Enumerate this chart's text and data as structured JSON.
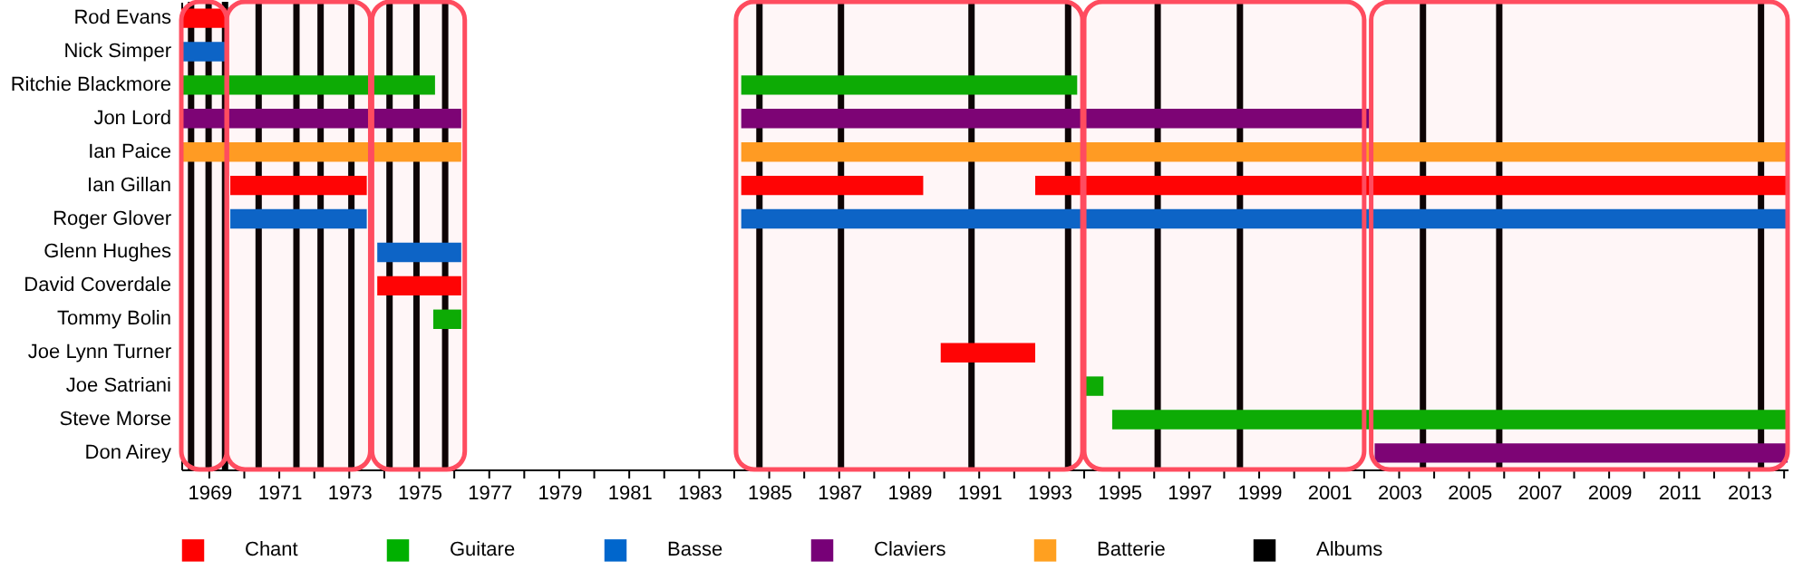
{
  "chart_data": {
    "type": "bar",
    "orientation": "horizontal",
    "legend": "bottom",
    "categories": [
      "Rod Evans",
      "Nick Simper",
      "Ritchie Blackmore",
      "Jon Lord",
      "Ian Paice",
      "Ian Gillan",
      "Roger Glover",
      "Glenn Hughes",
      "David Coverdale",
      "Tommy Bolin",
      "Joe Lynn Turner",
      "Joe Satriani",
      "Steve Morse",
      "Don Airey"
    ],
    "xlim": [
      1968.2,
      2014.1
    ],
    "xticks": [
      1969,
      {
        "value": 1970,
        "label": null
      },
      1971,
      {
        "value": 1972,
        "label": null
      },
      1973,
      {
        "value": 1974,
        "label": null
      },
      1975,
      {
        "value": 1976,
        "label": null
      },
      1977,
      {
        "value": 1978,
        "label": null
      },
      1979,
      {
        "value": 1980,
        "label": null
      },
      1981,
      {
        "value": 1982,
        "label": null
      },
      1983,
      {
        "value": 1984,
        "label": null
      },
      1985,
      {
        "value": 1986,
        "label": null
      },
      1987,
      {
        "value": 1988,
        "label": null
      },
      1989,
      {
        "value": 1990,
        "label": null
      },
      1991,
      {
        "value": 1992,
        "label": null
      },
      1993,
      {
        "value": 1994,
        "label": null
      },
      1995,
      {
        "value": 1996,
        "label": null
      },
      1997,
      {
        "value": 1998,
        "label": null
      },
      1999,
      {
        "value": 2000,
        "label": null
      },
      2001,
      {
        "value": 2002,
        "label": null
      },
      2003,
      {
        "value": 2004,
        "label": null
      },
      2005,
      {
        "value": 2006,
        "label": null
      },
      2007,
      {
        "value": 2008,
        "label": null
      },
      2009,
      {
        "value": 2010,
        "label": null
      },
      2011,
      {
        "value": 2012,
        "label": null
      },
      2013,
      {
        "value": 2014,
        "label": null
      }
    ],
    "series": [
      {
        "name": "Chant",
        "color": "#ff0000",
        "base": [
          1968.2,
          null,
          null,
          null,
          null,
          1969.6,
          null,
          null,
          1973.8,
          null,
          1989.9,
          null,
          null,
          null
        ],
        "values": [
          1.3,
          null,
          null,
          null,
          null,
          3.9,
          null,
          null,
          2.4,
          null,
          2.7,
          null,
          null,
          null
        ]
      },
      {
        "color": "#ff0000",
        "base": [
          null,
          null,
          null,
          null,
          null,
          1984.2,
          null,
          null,
          null,
          null,
          null,
          null,
          null,
          null
        ],
        "values": [
          null,
          null,
          null,
          null,
          null,
          5.2,
          null,
          null,
          null,
          null,
          null,
          null,
          null,
          null
        ]
      },
      {
        "color": "#ff0000",
        "base": [
          null,
          null,
          null,
          null,
          null,
          1992.6,
          null,
          null,
          null,
          null,
          null,
          null,
          null,
          null
        ],
        "values": [
          null,
          null,
          null,
          null,
          null,
          21.5,
          null,
          null,
          null,
          null,
          null,
          null,
          null,
          null
        ]
      },
      {
        "name": "Guitare",
        "color": "#00b000",
        "base": [
          null,
          null,
          1968.2,
          null,
          null,
          null,
          null,
          null,
          null,
          1975.4,
          null,
          1994.0,
          1994.8,
          null
        ],
        "values": [
          null,
          null,
          7.25,
          null,
          null,
          null,
          null,
          null,
          null,
          0.8,
          null,
          0.55,
          19.3,
          null
        ]
      },
      {
        "color": "#00b000",
        "base": [
          null,
          null,
          1984.2,
          null,
          null,
          null,
          null,
          null,
          null,
          null,
          null,
          null,
          null,
          null
        ],
        "values": [
          null,
          null,
          9.6,
          null,
          null,
          null,
          null,
          null,
          null,
          null,
          null,
          null,
          null,
          null
        ]
      },
      {
        "name": "Basse",
        "color": "#0066cc",
        "base": [
          null,
          1968.2,
          null,
          null,
          null,
          null,
          1969.6,
          1973.8,
          null,
          null,
          null,
          null,
          null,
          null
        ],
        "values": [
          null,
          1.3,
          null,
          null,
          null,
          null,
          3.9,
          2.4,
          null,
          null,
          null,
          null,
          null,
          null
        ]
      },
      {
        "color": "#0066cc",
        "base": [
          null,
          null,
          null,
          null,
          null,
          null,
          1984.2,
          null,
          null,
          null,
          null,
          null,
          null,
          null
        ],
        "values": [
          null,
          null,
          null,
          null,
          null,
          null,
          29.9,
          null,
          null,
          null,
          null,
          null,
          null,
          null
        ]
      },
      {
        "name": "Claviers",
        "color": "#770077",
        "base": [
          null,
          null,
          null,
          1968.2,
          null,
          null,
          null,
          null,
          null,
          null,
          null,
          null,
          null,
          2002.3
        ],
        "values": [
          null,
          null,
          null,
          8.0,
          null,
          null,
          null,
          null,
          null,
          null,
          null,
          null,
          null,
          11.8
        ]
      },
      {
        "color": "#770077",
        "base": [
          null,
          null,
          null,
          1984.2,
          null,
          null,
          null,
          null,
          null,
          null,
          null,
          null,
          null,
          null
        ],
        "values": [
          null,
          null,
          null,
          17.95,
          null,
          null,
          null,
          null,
          null,
          null,
          null,
          null,
          null,
          null
        ]
      },
      {
        "name": "Batterie",
        "color": "#ffa020",
        "base": [
          null,
          null,
          null,
          null,
          1968.2,
          null,
          null,
          null,
          null,
          null,
          null,
          null,
          null,
          null
        ],
        "values": [
          null,
          null,
          null,
          null,
          8.0,
          null,
          null,
          null,
          null,
          null,
          null,
          null,
          null,
          null
        ]
      },
      {
        "color": "#ffa020",
        "base": [
          null,
          null,
          null,
          null,
          1984.2,
          null,
          null,
          null,
          null,
          null,
          null,
          null,
          null,
          null
        ],
        "values": [
          null,
          null,
          null,
          null,
          29.9,
          null,
          null,
          null,
          null,
          null,
          null,
          null,
          null,
          null
        ]
      }
    ],
    "ref_lines": [
      {
        "axis": "x",
        "value": 1968.48,
        "label": "Albums",
        "color": "#000000"
      },
      {
        "axis": "x",
        "value": 1968.98,
        "color": "#000000"
      },
      {
        "axis": "x",
        "value": 1969.45,
        "color": "#000000"
      },
      {
        "axis": "x",
        "value": 1970.41,
        "color": "#000000"
      },
      {
        "axis": "x",
        "value": 1971.49,
        "color": "#000000"
      },
      {
        "axis": "x",
        "value": 1972.18,
        "color": "#000000"
      },
      {
        "axis": "x",
        "value": 1973.06,
        "color": "#000000"
      },
      {
        "axis": "x",
        "value": 1974.15,
        "color": "#000000"
      },
      {
        "axis": "x",
        "value": 1974.92,
        "color": "#000000"
      },
      {
        "axis": "x",
        "value": 1975.74,
        "color": "#000000"
      },
      {
        "axis": "x",
        "value": 1984.72,
        "color": "#000000"
      },
      {
        "axis": "x",
        "value": 1987.05,
        "color": "#000000"
      },
      {
        "axis": "x",
        "value": 1990.78,
        "color": "#000000"
      },
      {
        "axis": "x",
        "value": 1993.54,
        "color": "#000000"
      },
      {
        "axis": "x",
        "value": 1996.1,
        "color": "#000000"
      },
      {
        "axis": "x",
        "value": 1998.45,
        "color": "#000000"
      },
      {
        "axis": "x",
        "value": 2003.68,
        "color": "#000000"
      },
      {
        "axis": "x",
        "value": 2005.86,
        "color": "#000000"
      },
      {
        "axis": "x",
        "value": 2013.34,
        "color": "#000000"
      }
    ],
    "bands": [
      {
        "axis": "x",
        "from": 1968.2,
        "to": 1969.5,
        "color": "#ff4c5f"
      },
      {
        "axis": "x",
        "from": 1969.5,
        "to": 1973.6,
        "color": "#ff4c5f"
      },
      {
        "axis": "x",
        "from": 1973.65,
        "to": 1976.3,
        "color": "#ff4c5f"
      },
      {
        "axis": "x",
        "from": 1984.05,
        "to": 1993.95,
        "color": "#ff4c5f"
      },
      {
        "axis": "x",
        "from": 1994.0,
        "to": 2002.0,
        "color": "#ff4c5f"
      },
      {
        "axis": "x",
        "from": 2002.2,
        "to": 2014.1,
        "color": "#ff4c5f"
      }
    ]
  }
}
